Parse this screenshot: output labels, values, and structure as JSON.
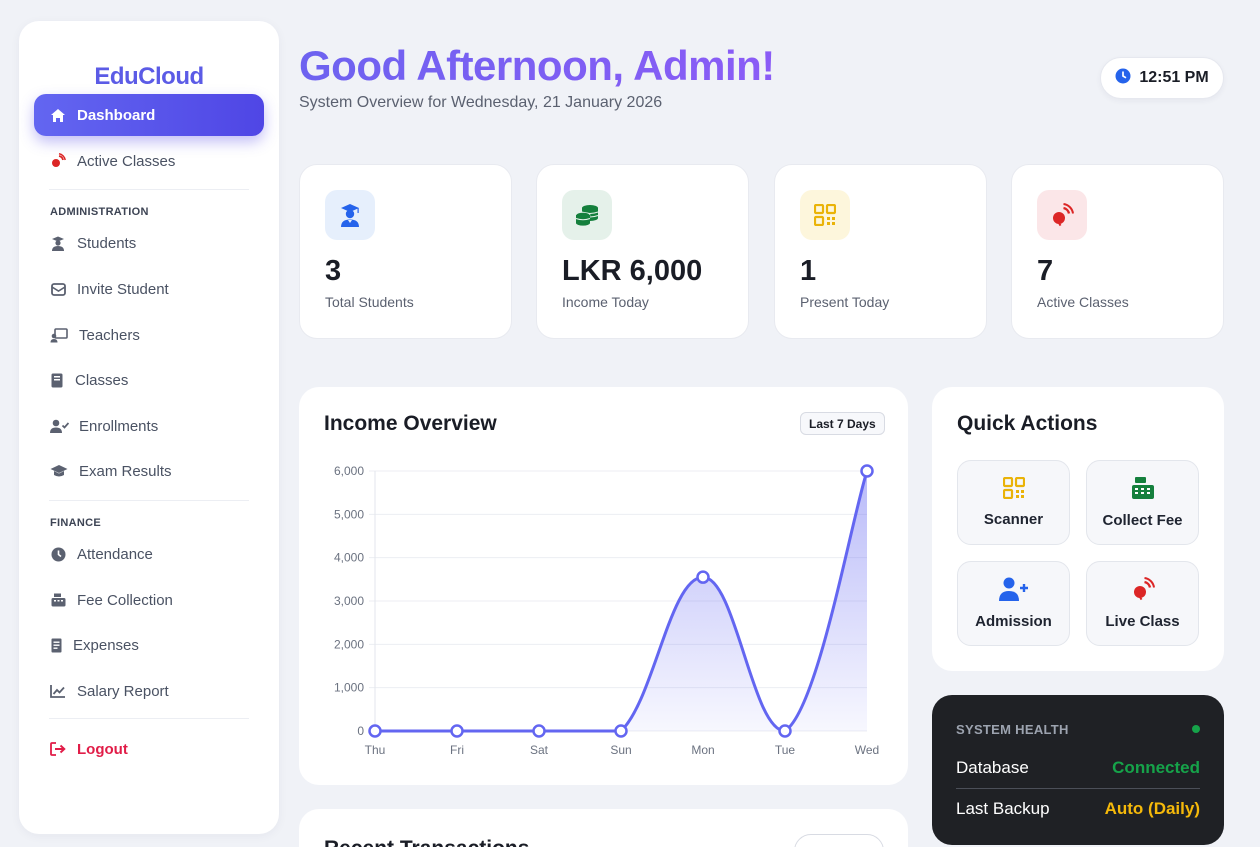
{
  "sidebar": {
    "brand": "EduCloud",
    "nav_top": [
      {
        "label": "Dashboard",
        "icon": "home-icon"
      },
      {
        "label": "Active Classes",
        "icon": "broadcast-icon"
      }
    ],
    "section_admin": "ADMINISTRATION",
    "nav_admin": [
      {
        "label": "Students",
        "icon": "student-icon"
      },
      {
        "label": "Invite Student",
        "icon": "envelope-icon"
      },
      {
        "label": "Teachers",
        "icon": "teacher-board-icon"
      },
      {
        "label": "Classes",
        "icon": "book-icon"
      },
      {
        "label": "Enrollments",
        "icon": "user-check-icon"
      },
      {
        "label": "Exam Results",
        "icon": "graduation-cap-icon"
      }
    ],
    "section_finance": "FINANCE",
    "nav_finance": [
      {
        "label": "Attendance",
        "icon": "clock-icon"
      },
      {
        "label": "Fee Collection",
        "icon": "cash-register-icon"
      },
      {
        "label": "Expenses",
        "icon": "receipt-icon"
      },
      {
        "label": "Salary Report",
        "icon": "line-chart-icon"
      }
    ],
    "logout": "Logout"
  },
  "header": {
    "greeting": "Good Afternoon, Admin!",
    "subtitle": "System Overview for Wednesday, 21 January 2026",
    "time": "12:51 PM"
  },
  "stats": [
    {
      "value": "3",
      "label": "Total Students",
      "icon": "student-icon",
      "color": "#2563eb",
      "bg": "#e6effc"
    },
    {
      "value": "LKR 6,000",
      "label": "Income Today",
      "icon": "coins-icon",
      "color": "#15803d",
      "bg": "#e5f1ea"
    },
    {
      "value": "1",
      "label": "Present Today",
      "icon": "qrcode-icon",
      "color": "#eab308",
      "bg": "#fdf6dc"
    },
    {
      "value": "7",
      "label": "Active Classes",
      "icon": "broadcast-icon",
      "color": "#dc2626",
      "bg": "#fbe6e8"
    }
  ],
  "income_overview": {
    "title": "Income Overview",
    "range": "Last 7 Days"
  },
  "chart_data": {
    "type": "area",
    "categories": [
      "Thu",
      "Fri",
      "Sat",
      "Sun",
      "Mon",
      "Tue",
      "Wed"
    ],
    "series": [
      {
        "values": [
          0,
          0,
          0,
          0,
          3550,
          0,
          6000
        ]
      }
    ],
    "yticks": [
      "0",
      "1,000",
      "2,000",
      "3,000",
      "4,000",
      "5,000",
      "6,000"
    ],
    "ylim": [
      0,
      6000
    ],
    "grid": true,
    "color": "#6366f1"
  },
  "quick_actions": {
    "title": "Quick Actions",
    "items": [
      {
        "label": "Scanner",
        "icon": "qrcode-icon",
        "color": "#eab308"
      },
      {
        "label": "Collect Fee",
        "icon": "cash-register-icon",
        "color": "#15803d"
      },
      {
        "label": "Admission",
        "icon": "user-plus-icon",
        "color": "#2563eb"
      },
      {
        "label": "Live Class",
        "icon": "broadcast-icon",
        "color": "#dc2626"
      }
    ]
  },
  "system_health": {
    "title": "SYSTEM HEALTH",
    "database_label": "Database",
    "database_value": "Connected",
    "backup_label": "Last Backup",
    "backup_value": "Auto (Daily)"
  },
  "bottom_card": {
    "title": "Recent Transactions"
  }
}
